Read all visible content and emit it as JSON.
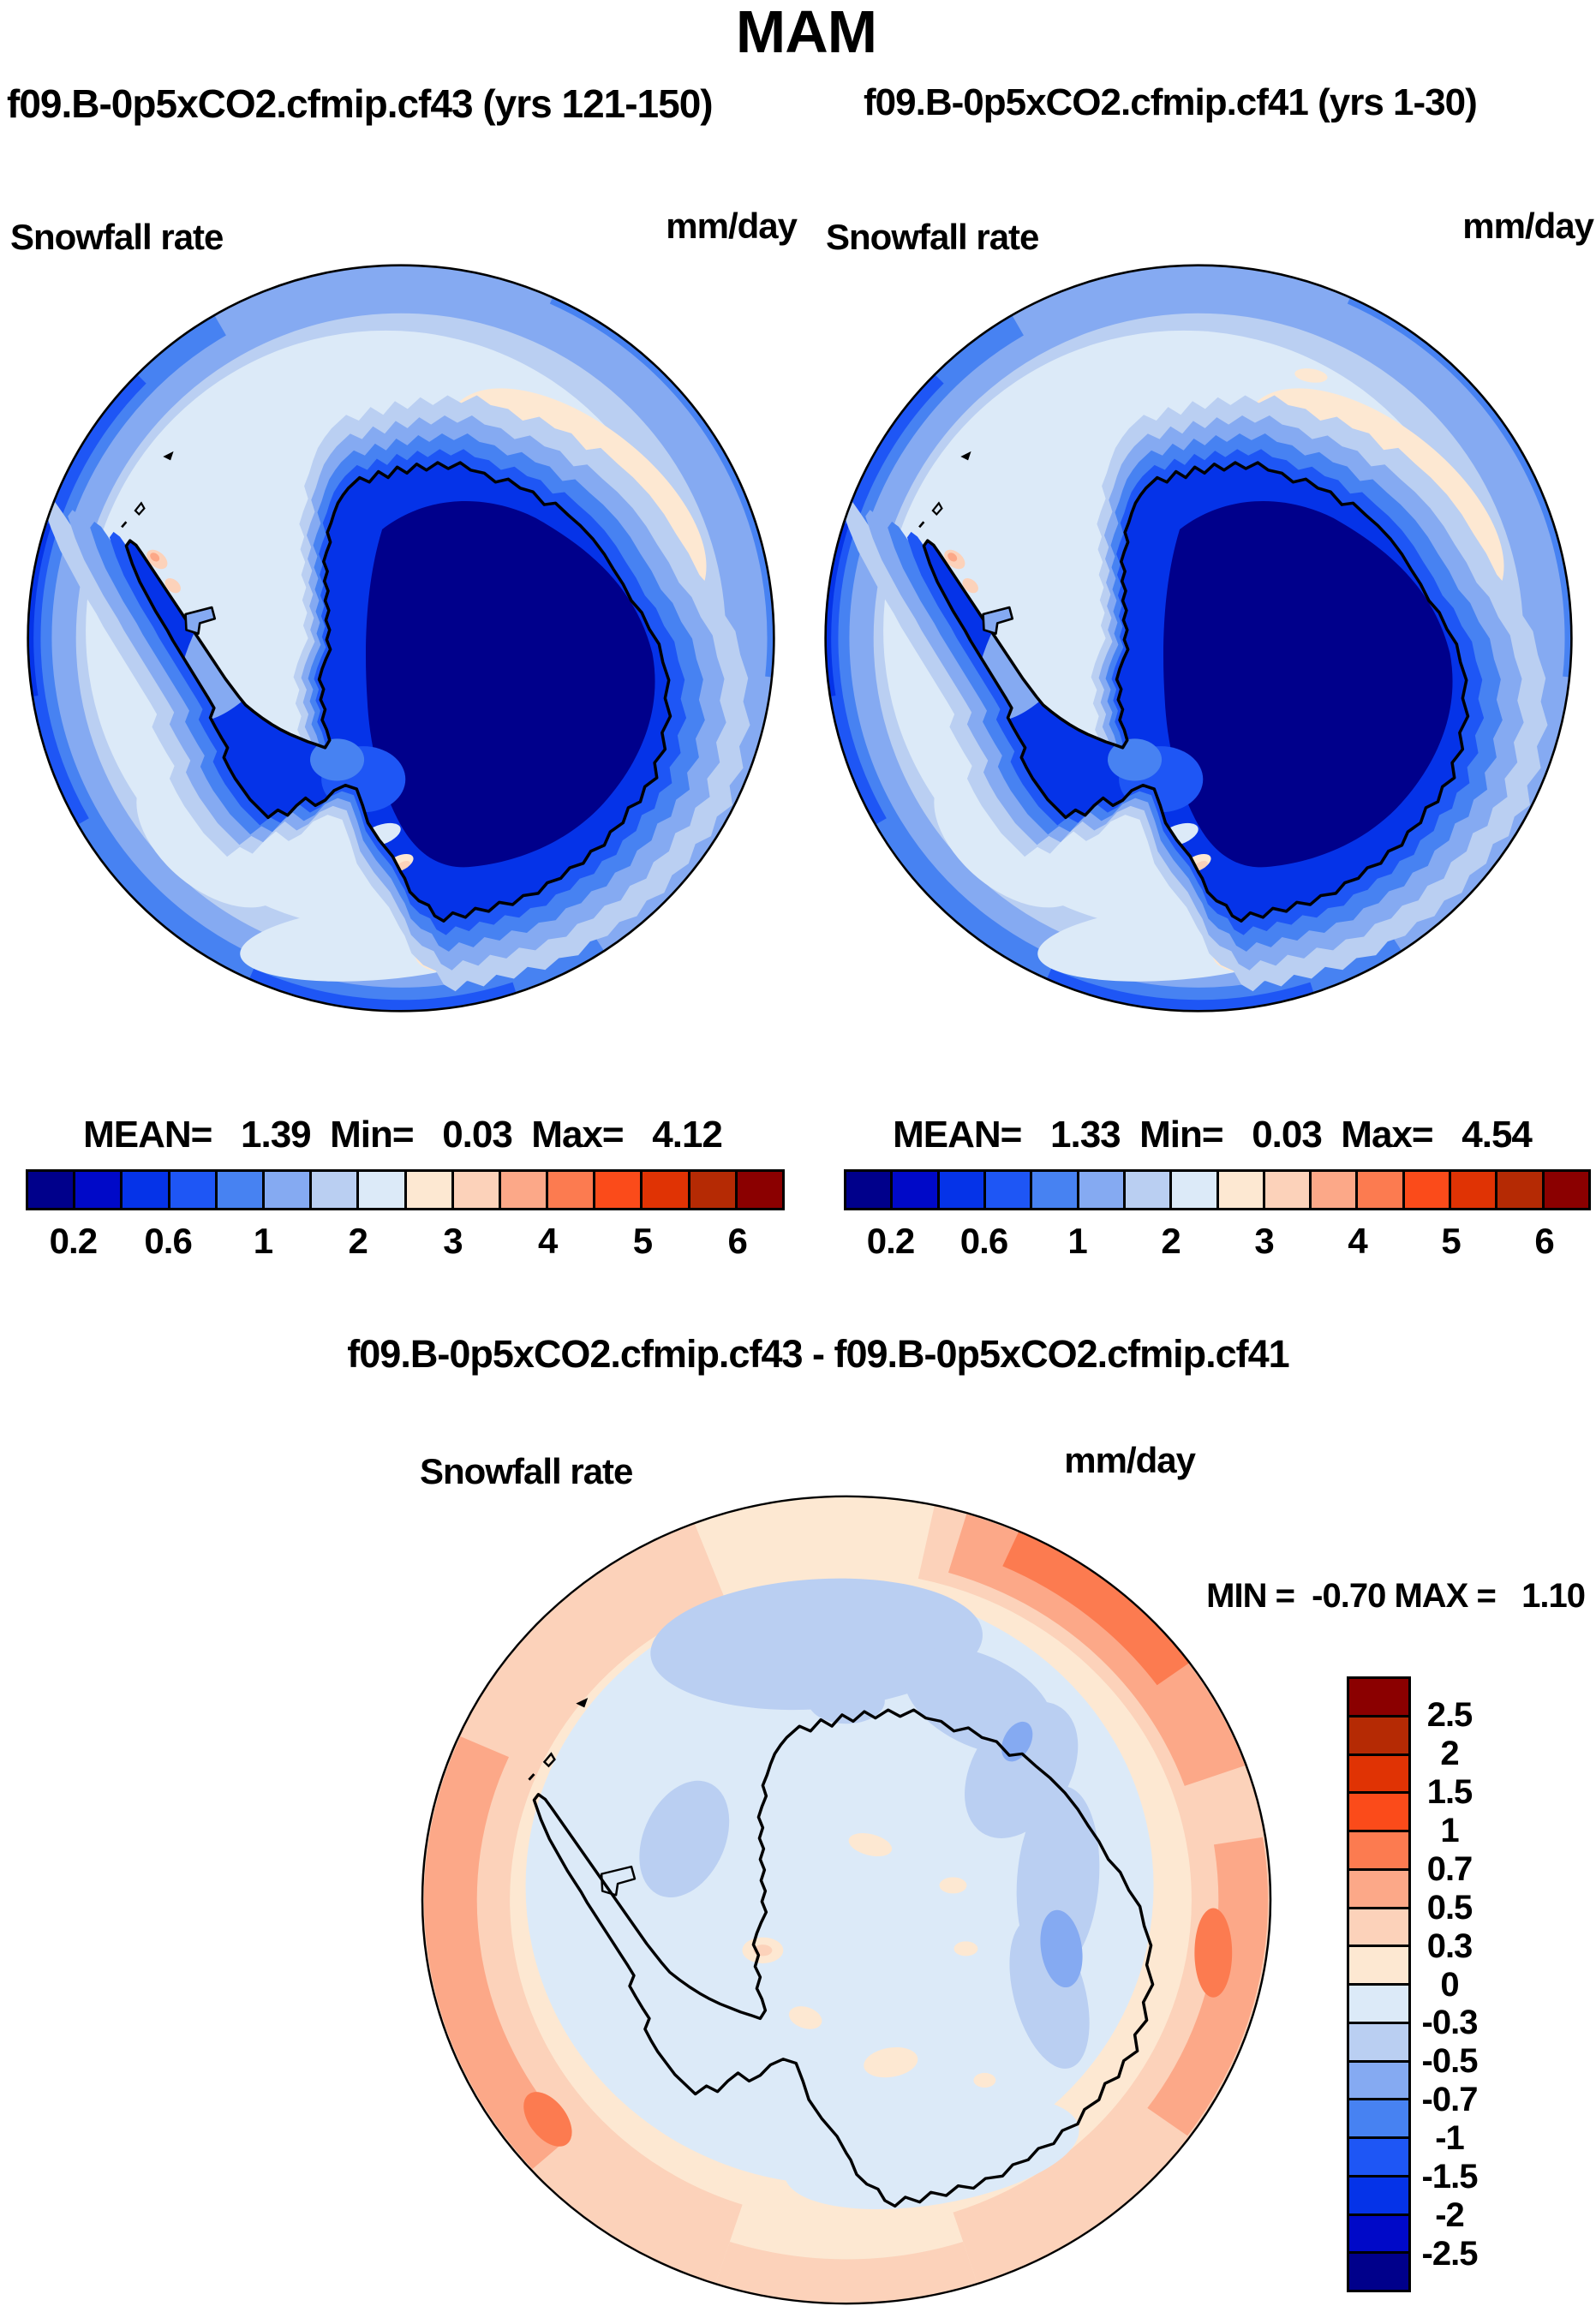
{
  "page": {
    "title": "MAM"
  },
  "panels": {
    "left": {
      "subtitle": "f09.B-0p5xCO2.cfmip.cf43 (yrs 121-150)",
      "field_label": "Snowfall rate",
      "units_label": "mm/day",
      "stats_text": "MEAN=   1.39  Min=   0.03  Max=   4.12"
    },
    "right": {
      "subtitle": "f09.B-0p5xCO2.cfmip.cf41 (yrs 1-30)",
      "field_label": "Snowfall rate",
      "units_label": "mm/day",
      "stats_text": "MEAN=   1.33  Min=   0.03  Max=   4.54"
    },
    "diff": {
      "title": "f09.B-0p5xCO2.cfmip.cf43 - f09.B-0p5xCO2.cfmip.cf41",
      "field_label": "Snowfall rate",
      "units_label": "mm/day",
      "stats_text": "MIN =  -0.70 MAX =   1.10"
    }
  },
  "chart_data": [
    {
      "type": "heatmap",
      "subtype": "filled_contour_map",
      "panel": "top_left",
      "title": "f09.B-0p5xCO2.cfmip.cf43 (yrs 121-150)",
      "variable": "Snowfall rate",
      "units": "mm/day",
      "projection": "south polar stereographic, Antarctica centered",
      "stats": {
        "mean": 1.39,
        "min": 0.03,
        "max": 4.12
      },
      "contour_levels": [
        0.2,
        0.4,
        0.6,
        0.8,
        1,
        1.5,
        2,
        2.5,
        3,
        3.5,
        4,
        4.5,
        5,
        5.5,
        6
      ],
      "colorbar_tick_labels": [
        "0.2",
        "0.6",
        "1",
        "2",
        "3",
        "4",
        "5",
        "6"
      ],
      "palette": [
        "#00008B",
        "#0009C8",
        "#0533E8",
        "#1E56F5",
        "#4782F2",
        "#85AAF2",
        "#BACFF2",
        "#DCEAF8",
        "#FDE8D2",
        "#FCD2BA",
        "#FCA888",
        "#FC7B50",
        "#FB4B1A",
        "#E03304",
        "#B52A04",
        "#8B0000"
      ],
      "pattern_notes": "dark navy minimum over East Antarctic interior, blue halo along coast, pale blue ocean ring, light peach maxima arc northeast and southeast of the circle, darker blue storm band at the map rim (west and south)"
    },
    {
      "type": "heatmap",
      "subtype": "filled_contour_map",
      "panel": "top_right",
      "title": "f09.B-0p5xCO2.cfmip.cf41 (yrs 1-30)",
      "variable": "Snowfall rate",
      "units": "mm/day",
      "projection": "south polar stereographic, Antarctica centered",
      "stats": {
        "mean": 1.33,
        "min": 0.03,
        "max": 4.54
      },
      "contour_levels": [
        0.2,
        0.4,
        0.6,
        0.8,
        1,
        1.5,
        2,
        2.5,
        3,
        3.5,
        4,
        4.5,
        5,
        5.5,
        6
      ],
      "colorbar_tick_labels": [
        "0.2",
        "0.6",
        "1",
        "2",
        "3",
        "4",
        "5",
        "6"
      ],
      "palette": [
        "#00008B",
        "#0009C8",
        "#0533E8",
        "#1E56F5",
        "#4782F2",
        "#85AAF2",
        "#BACFF2",
        "#DCEAF8",
        "#FDE8D2",
        "#FCD2BA",
        "#FCA888",
        "#FC7B50",
        "#FB4B1A",
        "#E03304",
        "#B52A04",
        "#8B0000"
      ],
      "pattern_notes": "same pattern as cf43 panel with a stronger orange snowfall maximum off the coast at the 2 o'clock position"
    },
    {
      "type": "heatmap",
      "subtype": "filled_contour_difference_map",
      "panel": "bottom_diff",
      "title": "f09.B-0p5xCO2.cfmip.cf43 - f09.B-0p5xCO2.cfmip.cf41",
      "variable": "Snowfall rate",
      "units": "mm/day",
      "stats": {
        "min": -0.7,
        "max": 1.1
      },
      "contour_levels": [
        -2.5,
        -2,
        -1.5,
        -1,
        -0.7,
        -0.5,
        -0.3,
        0,
        0.3,
        0.5,
        0.7,
        1,
        1.5,
        2,
        2.5
      ],
      "colorbar_tick_labels_top_to_bottom": [
        "2.5",
        "2",
        "1.5",
        "1",
        "0.7",
        "0.5",
        "0.3",
        "0",
        "-0.3",
        "-0.5",
        "-0.7",
        "-1",
        "-1.5",
        "-2",
        "-2.5"
      ],
      "palette": [
        "#00008B",
        "#0009C8",
        "#0533E8",
        "#1E56F5",
        "#4782F2",
        "#85AAF2",
        "#BACFF2",
        "#DCEAF8",
        "#FDE8D2",
        "#FCD2BA",
        "#FCA888",
        "#FC7B50",
        "#FB4B1A",
        "#E03304",
        "#B52A04",
        "#8B0000"
      ],
      "pattern_notes": "weak pale-blue negative differences over the continent interior and east coastal ocean, orange positive ring near the map rim, strongest positive band on the right (east) edge and west-southwest edge"
    }
  ]
}
